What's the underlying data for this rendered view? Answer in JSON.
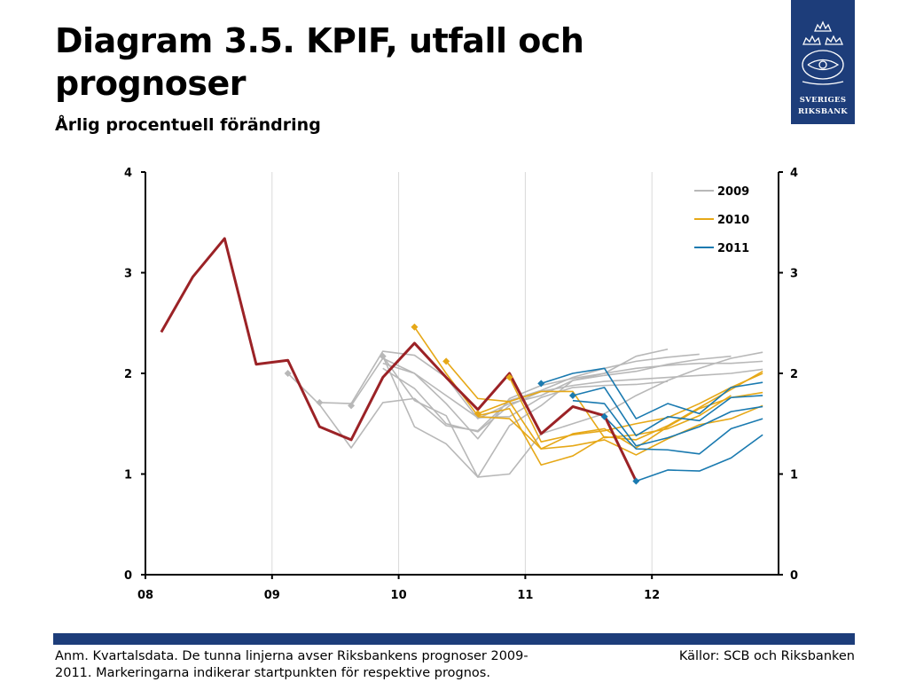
{
  "header": {
    "title": "Diagram 3.5. KPIF, utfall och prognoser",
    "subtitle": "Årlig procentuell förändring"
  },
  "logo": {
    "line1": "SVERIGES",
    "line2": "RIKSBANK",
    "color": "#1d3d7a"
  },
  "footer": {
    "note": "Anm. Kvartalsdata. De tunna linjerna avser Riksbankens prognoser 2009-2011. Markeringarna indikerar startpunkten för respektive prognos.",
    "source": "Källor: SCB och Riksbanken"
  },
  "chart_data": {
    "type": "line",
    "x_ticks": [
      "08",
      "09",
      "10",
      "11",
      "12"
    ],
    "ylim": [
      0,
      4
    ],
    "y_ticks": [
      "0",
      "1",
      "2",
      "3",
      "4"
    ],
    "secondary_y_ticks": [
      "0",
      "1",
      "2",
      "3",
      "4"
    ],
    "grid": "vertical",
    "legend_position": "top-right",
    "legend": [
      {
        "label": "2009",
        "color": "#b8b8b8"
      },
      {
        "label": "2010",
        "color": "#e6a817"
      },
      {
        "label": "2011",
        "color": "#1a7ab0"
      }
    ],
    "outcome": {
      "color": "#9b2226",
      "x": [
        2008.125,
        2008.375,
        2008.625,
        2008.875,
        2009.125,
        2009.375,
        2009.625,
        2009.875,
        2010.125,
        2010.375,
        2010.625,
        2010.875,
        2011.125,
        2011.375,
        2011.625,
        2011.875
      ],
      "y": [
        2.41,
        2.96,
        3.34,
        2.09,
        2.13,
        1.47,
        1.34,
        1.96,
        2.3,
        1.96,
        1.64,
        2.0,
        1.4,
        1.67,
        1.58,
        0.93
      ]
    },
    "forecasts": [
      {
        "year": "2009",
        "start": 2009.125,
        "y": [
          2.0,
          1.69,
          1.26,
          1.71,
          1.75,
          1.48,
          1.43,
          1.73,
          1.83,
          1.96,
          2.05,
          2.12,
          2.16,
          2.19
        ],
        "marker": true
      },
      {
        "year": "2009",
        "start": 2009.375,
        "y": [
          1.71,
          1.7,
          2.22,
          2.18,
          1.96,
          1.55,
          1.7,
          1.78,
          1.93,
          2.0,
          2.17,
          2.24
        ],
        "marker": true
      },
      {
        "year": "2009",
        "start": 2009.625,
        "y": [
          1.68,
          2.15,
          2.0,
          1.78,
          1.56,
          1.57,
          1.76,
          1.86,
          1.88,
          1.89,
          1.92
        ],
        "marker": true
      },
      {
        "year": "2009",
        "start": 2009.875,
        "y": [
          2.17,
          1.73,
          1.58,
          0.97,
          1.0,
          1.4,
          1.5,
          1.6,
          1.78,
          1.93,
          2.05,
          2.15,
          2.21
        ],
        "marker": true
      },
      {
        "year": "2009",
        "start": 2009.875,
        "y": [
          2.17,
          1.47,
          1.3,
          0.97,
          1.48,
          1.68,
          1.93,
          1.98,
          2.02,
          2.09,
          2.14,
          2.17
        ],
        "marker": false
      },
      {
        "year": "2009",
        "start": 2009.875,
        "y": [
          2.1,
          2.0,
          1.7,
          1.35,
          1.75,
          1.88,
          1.95,
          2.0,
          2.05,
          2.08,
          2.1,
          2.1,
          2.12
        ],
        "marker": false
      },
      {
        "year": "2009",
        "start": 2009.875,
        "y": [
          2.05,
          1.85,
          1.5,
          1.42,
          1.68,
          1.82,
          1.88,
          1.92,
          1.94,
          1.96,
          1.98,
          2.0,
          2.04
        ],
        "marker": false
      },
      {
        "year": "2010",
        "start": 2010.125,
        "y": [
          2.46,
          2.0,
          1.58,
          1.65,
          1.09,
          1.18,
          1.37,
          1.34,
          1.48,
          1.66,
          1.84,
          2.02
        ],
        "marker": true
      },
      {
        "year": "2010",
        "start": 2010.375,
        "y": [
          2.12,
          1.75,
          1.72,
          1.25,
          1.28,
          1.34,
          1.19,
          1.35,
          1.49,
          1.55,
          1.68
        ],
        "marker": true
      },
      {
        "year": "2010",
        "start": 2010.625,
        "y": [
          1.6,
          1.72,
          1.82,
          1.82,
          1.36,
          1.39,
          1.45,
          1.58,
          1.78
        ],
        "marker": true
      },
      {
        "year": "2010",
        "start": 2010.875,
        "y": [
          1.96,
          1.32,
          1.39,
          1.43,
          1.5,
          1.56,
          1.7,
          1.86,
          2.0
        ],
        "marker": true
      },
      {
        "year": "2010",
        "start": 2010.625,
        "y": [
          1.57,
          1.55,
          1.25,
          1.4,
          1.45,
          1.26,
          1.47,
          1.65,
          1.76,
          1.81
        ],
        "marker": false
      },
      {
        "year": "2011",
        "start": 2011.125,
        "y": [
          1.9,
          2.0,
          2.05,
          1.55,
          1.7,
          1.6,
          1.86,
          1.91
        ],
        "marker": true
      },
      {
        "year": "2011",
        "start": 2011.375,
        "y": [
          1.78,
          1.86,
          1.38,
          1.57,
          1.53,
          1.76,
          1.78
        ],
        "marker": true
      },
      {
        "year": "2011",
        "start": 2011.375,
        "y": [
          1.73,
          1.7,
          1.28,
          1.36,
          1.47,
          1.62,
          1.67
        ],
        "marker": false
      },
      {
        "year": "2011",
        "start": 2011.625,
        "y": [
          1.57,
          1.25,
          1.24,
          1.2,
          1.45,
          1.55
        ],
        "marker": true
      },
      {
        "year": "2011",
        "start": 2011.875,
        "y": [
          0.93,
          1.04,
          1.03,
          1.16,
          1.39
        ],
        "marker": true
      }
    ]
  }
}
